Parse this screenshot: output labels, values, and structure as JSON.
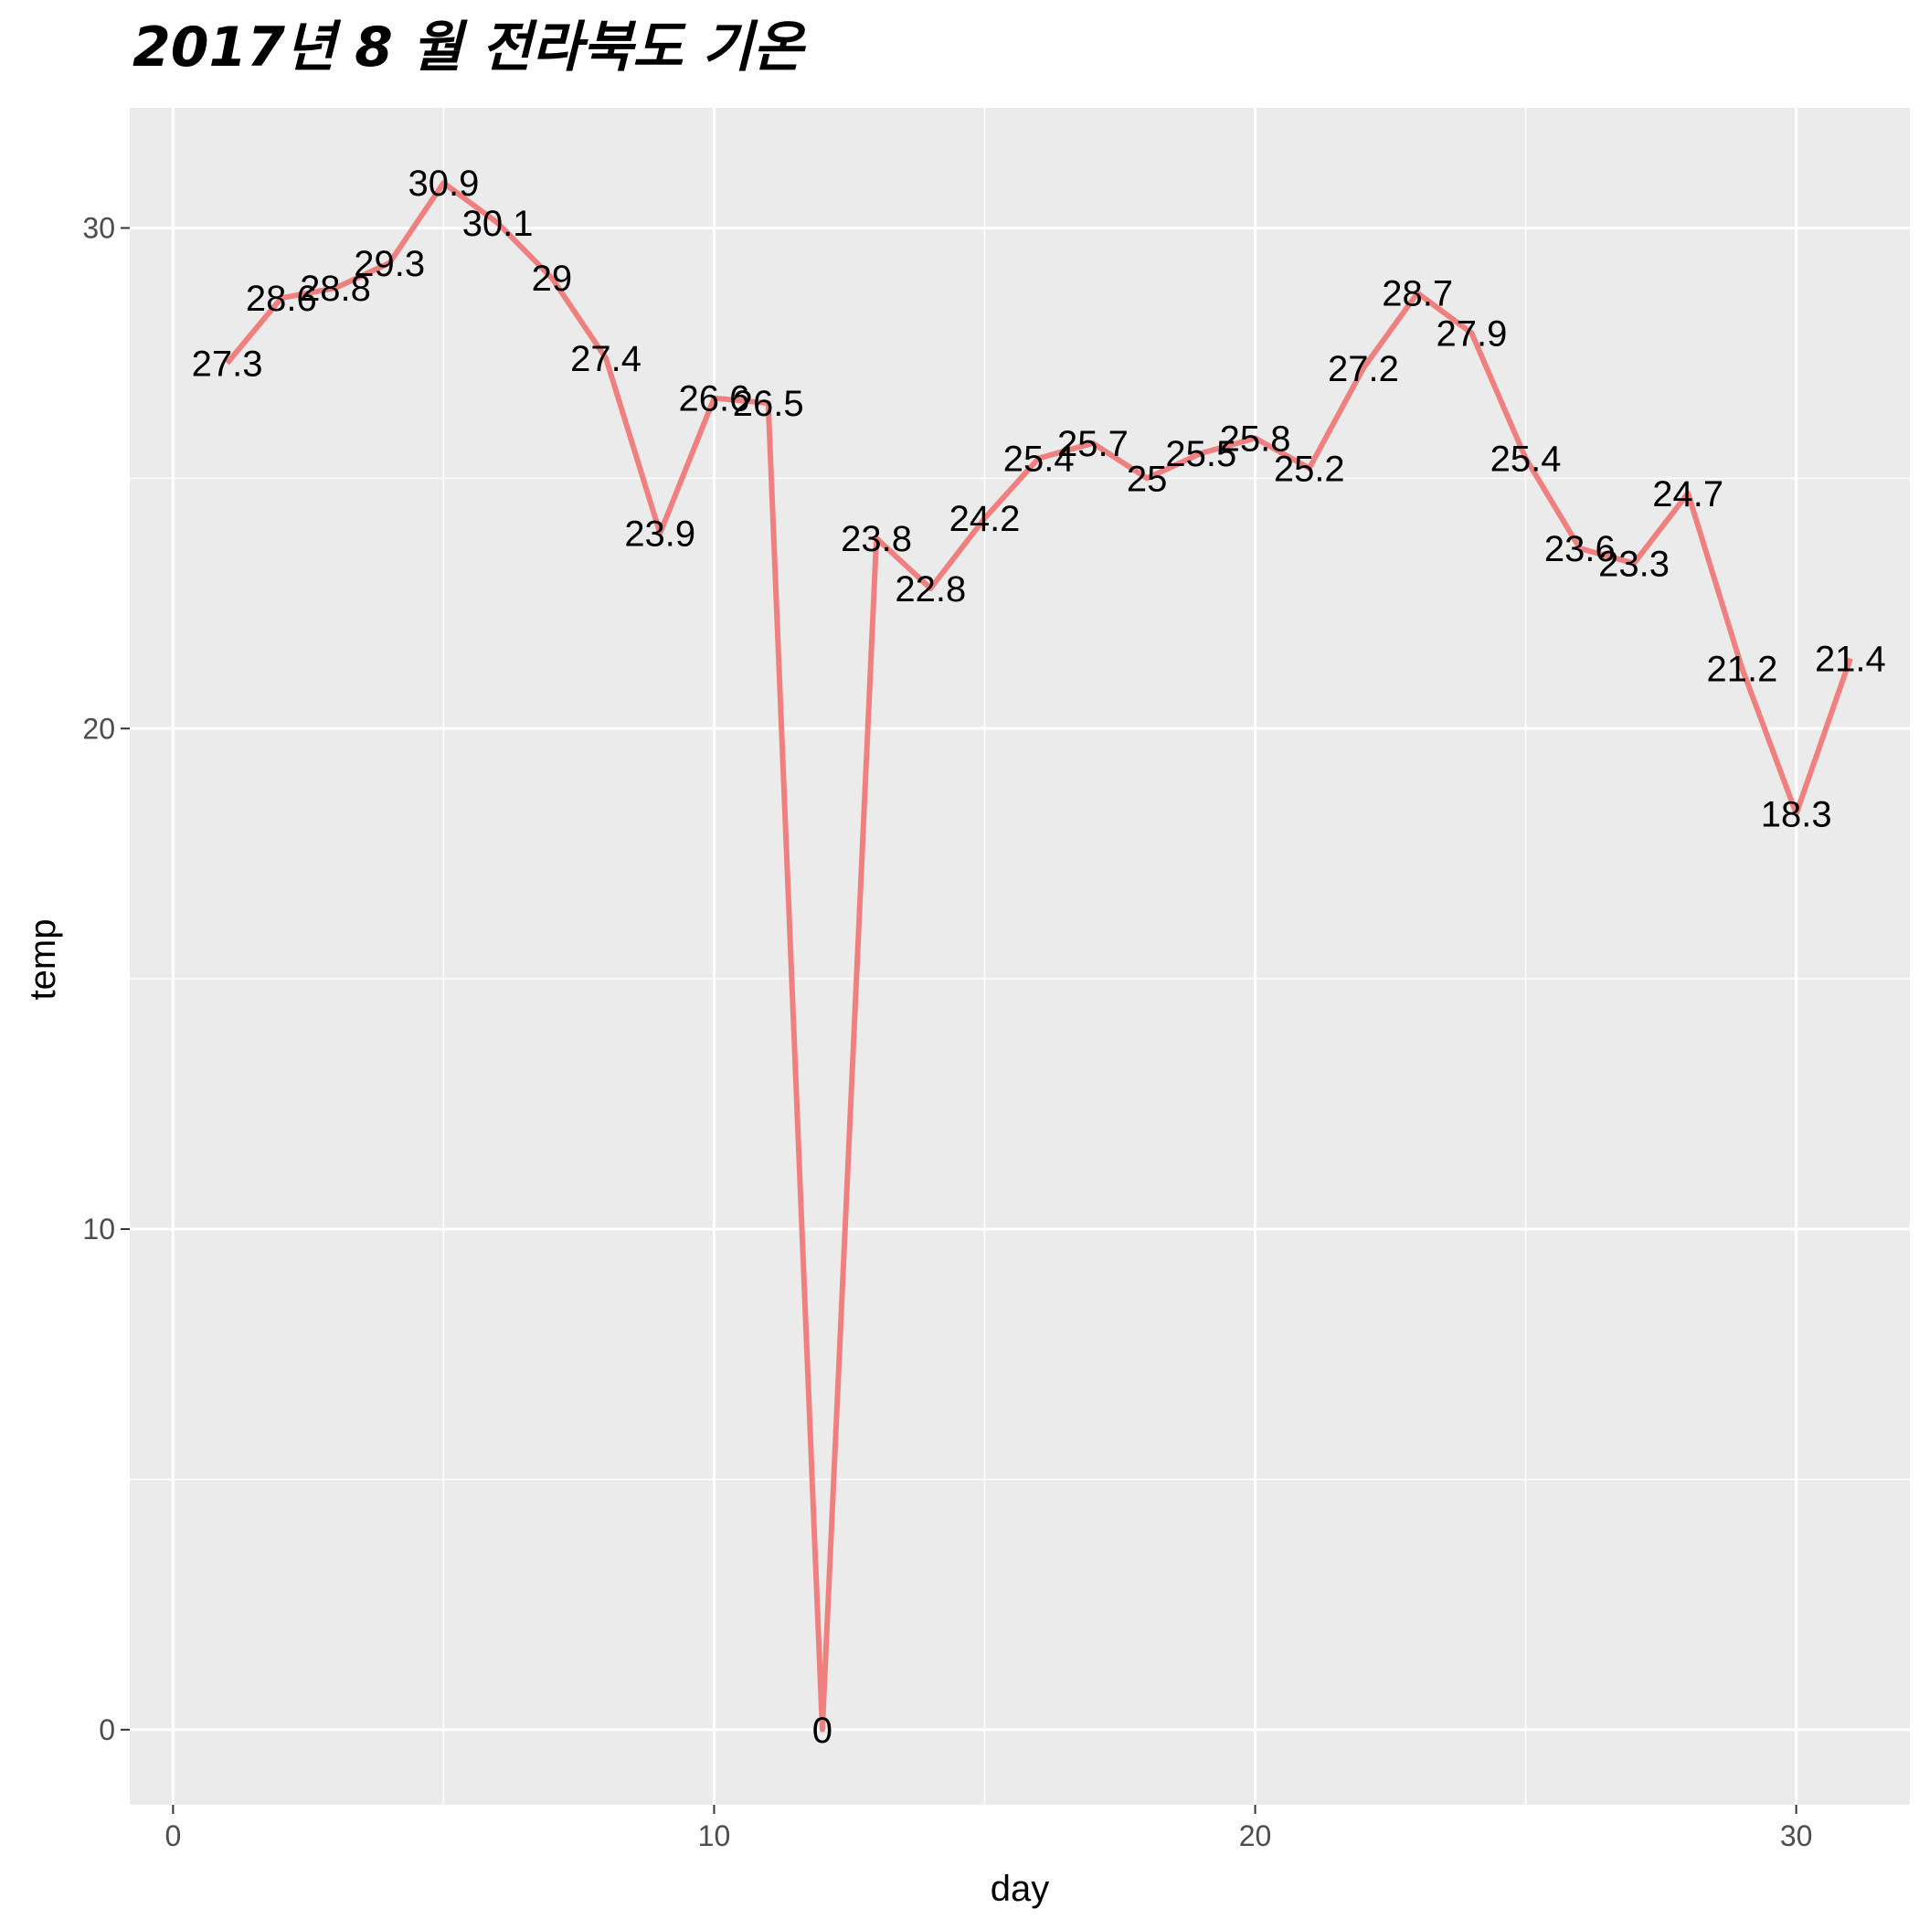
{
  "chart_data": {
    "type": "line",
    "title": "2017년 8 월 전라북도 기온",
    "xlabel": "day",
    "ylabel": "temp",
    "xlim": [
      -0.8,
      32.1
    ],
    "ylim": [
      -1.5,
      32.4
    ],
    "x_ticks": [
      0,
      10,
      20,
      30
    ],
    "y_ticks": [
      0,
      10,
      20,
      30
    ],
    "grid": true,
    "legend": "none",
    "colors": {
      "panel": "#EBEBEB",
      "grid": "#FFFFFF",
      "line": "#F08080",
      "tick": "#333333"
    },
    "series": [
      {
        "x": [
          1,
          2,
          3,
          4,
          5,
          6,
          7,
          8,
          9,
          10,
          11,
          12,
          13,
          14,
          15,
          16,
          17,
          18,
          19,
          20,
          21,
          22,
          23,
          24,
          25,
          26,
          27,
          28,
          29,
          30,
          31
        ],
        "values": [
          27.3,
          28.6,
          28.8,
          29.3,
          30.9,
          30.1,
          29,
          27.4,
          23.9,
          26.6,
          26.5,
          0,
          23.8,
          22.8,
          24.2,
          25.4,
          25.7,
          25,
          25.5,
          25.8,
          25.2,
          27.2,
          28.7,
          27.9,
          25.4,
          23.6,
          23.3,
          24.7,
          21.2,
          18.3,
          21.4
        ],
        "labels": [
          "27.3",
          "28.6",
          "28.8",
          "29.3",
          "30.9",
          "30.1",
          "29",
          "27.4",
          "23.9",
          "26.6",
          "26.5",
          "0",
          "23.8",
          "22.8",
          "24.2",
          "25.4",
          "25.7",
          "25",
          "25.5",
          "25.8",
          "25.2",
          "27.2",
          "28.7",
          "27.9",
          "25.4",
          "23.6",
          "23.3",
          "24.7",
          "21.2",
          "18.3",
          "21.4"
        ]
      }
    ]
  }
}
